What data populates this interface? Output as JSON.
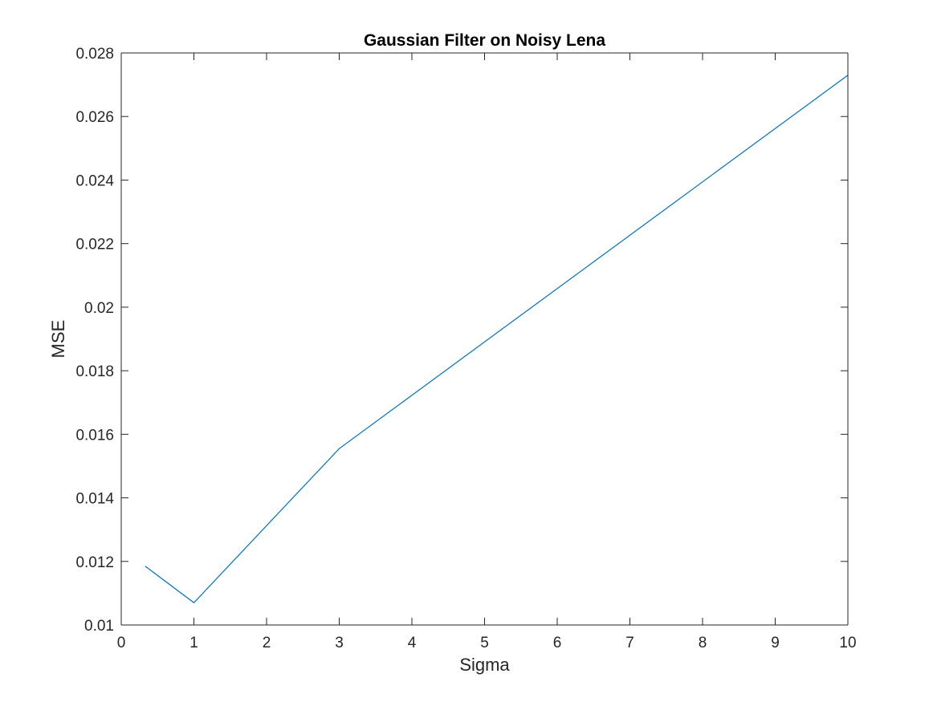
{
  "chart_data": {
    "type": "line",
    "title": "Gaussian Filter on Noisy Lena",
    "xlabel": "Sigma",
    "ylabel": "MSE",
    "xlim": [
      0,
      10
    ],
    "ylim": [
      0.01,
      0.028
    ],
    "xticks": [
      0,
      1,
      2,
      3,
      4,
      5,
      6,
      7,
      8,
      9,
      10
    ],
    "xtick_labels": [
      "0",
      "1",
      "2",
      "3",
      "4",
      "5",
      "6",
      "7",
      "8",
      "9",
      "10"
    ],
    "yticks": [
      0.01,
      0.012,
      0.014,
      0.016,
      0.018,
      0.02,
      0.022,
      0.024,
      0.026,
      0.028
    ],
    "ytick_labels": [
      "0.01",
      "0.012",
      "0.014",
      "0.016",
      "0.018",
      "0.02",
      "0.022",
      "0.024",
      "0.026",
      "0.028"
    ],
    "grid": false,
    "series": [
      {
        "color": "#0072bd",
        "x": [
          0.33,
          1,
          3,
          10
        ],
        "y": [
          0.01185,
          0.0107,
          0.01555,
          0.0273
        ]
      }
    ]
  }
}
